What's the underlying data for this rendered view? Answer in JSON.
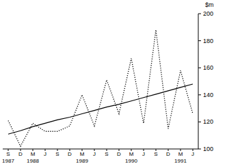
{
  "chart_data": {
    "type": "line",
    "y_label": "$m",
    "categories": [
      "S",
      "D",
      "M",
      "J",
      "S",
      "D",
      "M",
      "J",
      "S",
      "D",
      "M",
      "J",
      "S",
      "D",
      "M",
      "J"
    ],
    "category_years": [
      "1987",
      null,
      "1988",
      null,
      null,
      null,
      "1989",
      null,
      null,
      null,
      "1990",
      null,
      null,
      null,
      "1991",
      null
    ],
    "series": [
      {
        "color": "#000000",
        "line_style": "dotted",
        "values": [
          121,
          102,
          119,
          113,
          113,
          117,
          140,
          117,
          151,
          126,
          167,
          119,
          188,
          115,
          158,
          126
        ]
      },
      {
        "color": "#000000",
        "line_style": "solid",
        "values": [
          111,
          113.5,
          116.5,
          119,
          121.5,
          123.5,
          126,
          128.5,
          131,
          133,
          135.5,
          138,
          140.5,
          143,
          145.5,
          148
        ]
      }
    ],
    "ylim": [
      100,
      200
    ],
    "yticks": [
      100,
      120,
      140,
      160,
      180,
      200
    ],
    "grid": false
  }
}
